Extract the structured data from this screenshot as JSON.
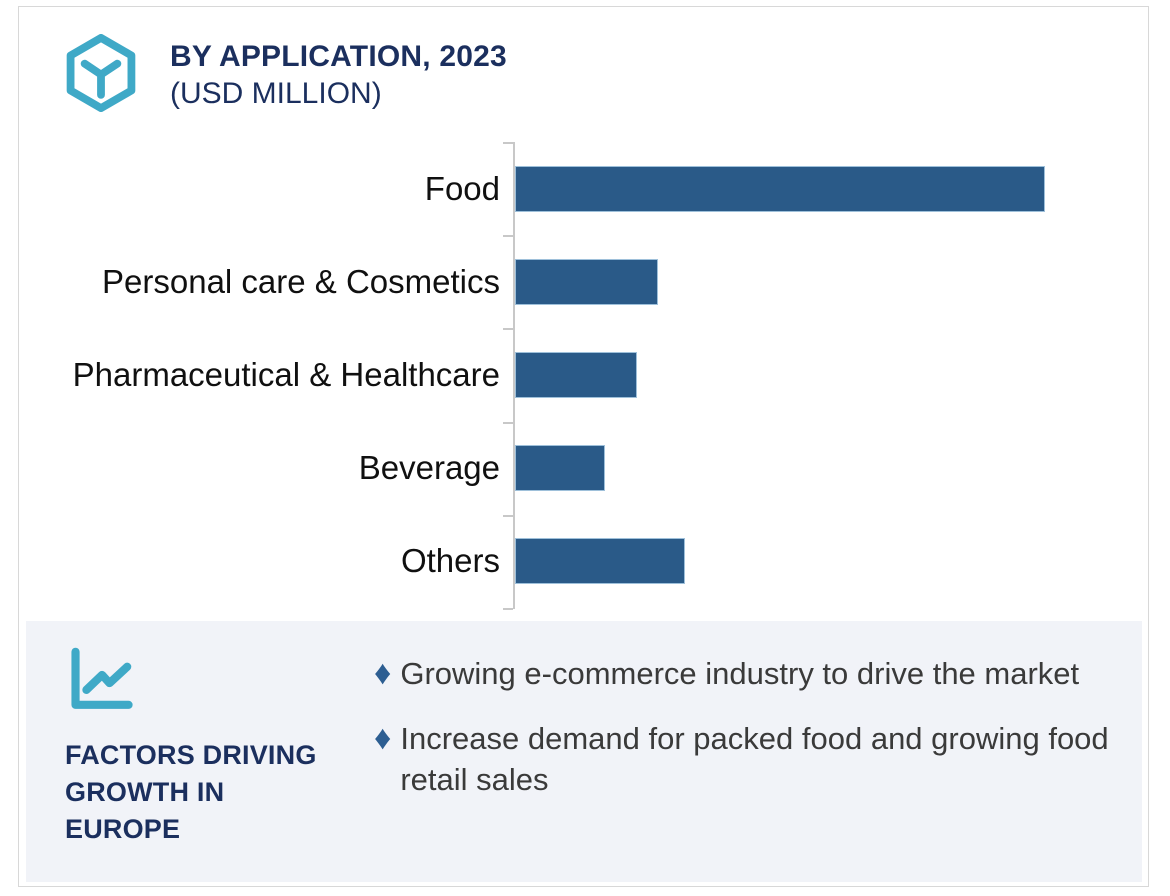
{
  "header": {
    "title": "BY APPLICATION, 2023",
    "subtitle": "(USD MILLION)",
    "icon": "hexagon-y-icon"
  },
  "chart_data": {
    "type": "bar",
    "orientation": "horizontal",
    "title": "BY APPLICATION, 2023 (USD MILLION)",
    "categories": [
      "Food",
      "Personal care & Cosmetics",
      "Pharmaceutical & Healthcare",
      "Beverage",
      "Others"
    ],
    "values": [
      100,
      27,
      23,
      17,
      32
    ],
    "values_note": "Relative bar lengths estimated from pixels, Food = 100; no numeric axis labels or gridlines are shown in the chart",
    "bar_color": "#2a5a88",
    "axis_color": "#c8c8c8",
    "grid": false,
    "legend": false,
    "value_labels": false,
    "tick_count": 6
  },
  "factors": {
    "icon": "line-chart-icon",
    "heading_lines": [
      "FACTORS DRIVING",
      "GROWTH IN",
      "EUROPE"
    ],
    "bullet_marker": "♦",
    "bullets": [
      "Growing e-commerce industry to drive the market",
      "Increase demand for packed food and growing food retail sales"
    ]
  },
  "colors": {
    "accent_teal": "#3fa9c7",
    "navy": "#1b2f5e",
    "bar_blue": "#2a5a88",
    "diamond_blue": "#2d5e92",
    "panel_background": "#f1f3f8",
    "frame_border": "#d8d8d8",
    "body_text": "#3a3a3a"
  }
}
